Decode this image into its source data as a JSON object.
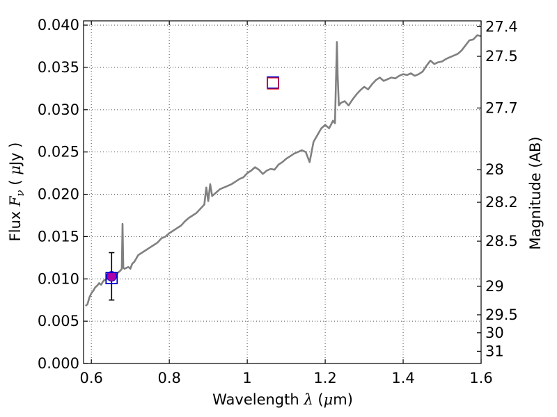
{
  "chart_data": {
    "type": "line",
    "xlabel": "Wavelength",
    "xlabel_symbol": "λ",
    "xlabel_unit_open": "(",
    "xlabel_unit_mu": "μ",
    "xlabel_unit_rest": "m)",
    "ylabel": "Flux",
    "ylabel_symbol": "F",
    "ylabel_symbol_sub": "ν",
    "ylabel_unit_open": "(",
    "ylabel_unit_mu": "μ",
    "ylabel_unit_rest": "Jy )",
    "y2label": "Magnitude (AB)",
    "xlim": [
      0.58,
      1.6
    ],
    "ylim": [
      0.0,
      0.0405
    ],
    "grid": true,
    "x_ticks": [
      0.6,
      0.8,
      1.0,
      1.2,
      1.4,
      1.6
    ],
    "x_tick_labels": [
      "0.6",
      "0.8",
      "1",
      "1.2",
      "1.4",
      "1.6"
    ],
    "y_ticks": [
      0.0,
      0.005,
      0.01,
      0.015,
      0.02,
      0.025,
      0.03,
      0.035,
      0.04
    ],
    "y_tick_labels": [
      "0.000",
      "0.005",
      "0.010",
      "0.015",
      "0.020",
      "0.025",
      "0.030",
      "0.035",
      "0.040"
    ],
    "y2_ticks": [
      27.4,
      27.5,
      27.7,
      28,
      28.2,
      28.5,
      29,
      29.5,
      30,
      31
    ],
    "y2_tick_labels": [
      "27.4",
      "27.5",
      "27.7",
      "28",
      "28.2",
      "28.5",
      "29",
      "29.5",
      "30",
      "31"
    ],
    "series": [
      {
        "color": "#808080",
        "x": [
          0.585,
          0.59,
          0.595,
          0.6,
          0.605,
          0.61,
          0.615,
          0.62,
          0.625,
          0.63,
          0.635,
          0.64,
          0.645,
          0.65,
          0.655,
          0.66,
          0.665,
          0.67,
          0.675,
          0.678,
          0.68,
          0.682,
          0.685,
          0.69,
          0.695,
          0.7,
          0.705,
          0.71,
          0.715,
          0.72,
          0.73,
          0.74,
          0.75,
          0.76,
          0.77,
          0.78,
          0.79,
          0.8,
          0.81,
          0.82,
          0.83,
          0.84,
          0.85,
          0.86,
          0.87,
          0.88,
          0.89,
          0.895,
          0.9,
          0.905,
          0.91,
          0.92,
          0.93,
          0.94,
          0.95,
          0.96,
          0.97,
          0.98,
          0.99,
          1.0,
          1.01,
          1.02,
          1.03,
          1.04,
          1.05,
          1.06,
          1.07,
          1.08,
          1.09,
          1.1,
          1.11,
          1.12,
          1.13,
          1.14,
          1.15,
          1.16,
          1.17,
          1.18,
          1.19,
          1.2,
          1.21,
          1.22,
          1.225,
          1.23,
          1.232,
          1.235,
          1.24,
          1.25,
          1.26,
          1.27,
          1.28,
          1.29,
          1.3,
          1.31,
          1.32,
          1.33,
          1.34,
          1.35,
          1.36,
          1.37,
          1.38,
          1.39,
          1.4,
          1.41,
          1.42,
          1.43,
          1.44,
          1.45,
          1.46,
          1.47,
          1.48,
          1.49,
          1.5,
          1.51,
          1.52,
          1.53,
          1.54,
          1.55,
          1.56,
          1.57,
          1.58,
          1.59,
          1.6
        ],
        "values": [
          0.0068,
          0.007,
          0.0078,
          0.0083,
          0.0086,
          0.009,
          0.0092,
          0.0095,
          0.0093,
          0.0097,
          0.0099,
          0.01,
          0.0101,
          0.0102,
          0.0103,
          0.0104,
          0.0106,
          0.0108,
          0.011,
          0.0112,
          0.0165,
          0.0113,
          0.0112,
          0.0113,
          0.0114,
          0.0112,
          0.0118,
          0.012,
          0.0124,
          0.0128,
          0.0131,
          0.0134,
          0.0137,
          0.014,
          0.0143,
          0.0148,
          0.015,
          0.0154,
          0.0157,
          0.016,
          0.0163,
          0.0168,
          0.0172,
          0.0175,
          0.0178,
          0.0183,
          0.0188,
          0.0208,
          0.0192,
          0.0212,
          0.0198,
          0.0202,
          0.0206,
          0.0208,
          0.021,
          0.0212,
          0.0215,
          0.0218,
          0.022,
          0.0225,
          0.0228,
          0.0232,
          0.0229,
          0.0224,
          0.0228,
          0.023,
          0.0229,
          0.0235,
          0.0238,
          0.0242,
          0.0245,
          0.0248,
          0.025,
          0.0252,
          0.025,
          0.0238,
          0.0262,
          0.027,
          0.0278,
          0.0282,
          0.0278,
          0.0287,
          0.0284,
          0.038,
          0.034,
          0.0305,
          0.0308,
          0.031,
          0.0305,
          0.0312,
          0.0318,
          0.0323,
          0.0327,
          0.0324,
          0.033,
          0.0335,
          0.0338,
          0.0334,
          0.0336,
          0.0338,
          0.0337,
          0.034,
          0.0342,
          0.0341,
          0.0343,
          0.034,
          0.0342,
          0.0345,
          0.0352,
          0.0358,
          0.0354,
          0.0356,
          0.0357,
          0.036,
          0.0362,
          0.0364,
          0.0366,
          0.037,
          0.0376,
          0.0382,
          0.0383,
          0.0388,
          0.0387
        ]
      }
    ],
    "points": [
      {
        "marker": "circle",
        "x": 0.652,
        "y": 0.0103,
        "yerr": [
          0.0075,
          0.0131
        ],
        "face_color": "#aa00aa",
        "edge_color": "#0000cc"
      },
      {
        "marker": "square",
        "x": 0.652,
        "y": 0.0101,
        "edge_color": "#0000cc"
      },
      {
        "marker": "square",
        "x": 1.066,
        "y": 0.0332,
        "edge_color": "#0000cc"
      },
      {
        "marker": "square",
        "x": 1.066,
        "y": 0.0331,
        "edge_color": "#ff0000"
      }
    ]
  }
}
